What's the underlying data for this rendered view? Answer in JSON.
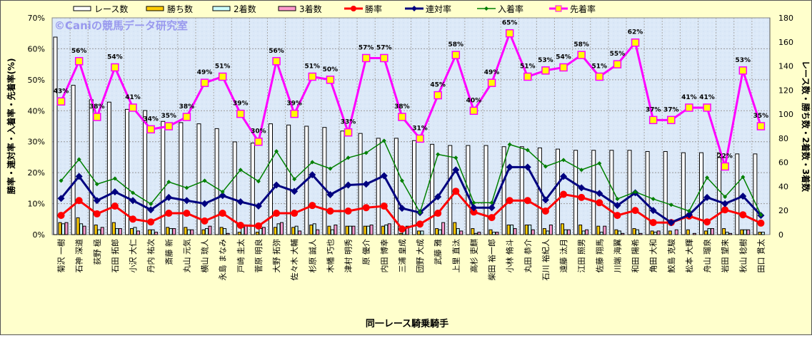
{
  "chart_data": {
    "type": "bar+line",
    "watermark": "©Caniの競馬データ研究室",
    "xlabel": "同一レース騎乗騎手",
    "ylabel_left": "勝率・連対率・入着率・先着率(%)",
    "ylabel_right": "レース数・勝ち数・2着数・3着数",
    "ylim_left": [
      0,
      70
    ],
    "ylim_right": [
      0,
      180
    ],
    "yticks_left": [
      "0%",
      "10%",
      "20%",
      "30%",
      "40%",
      "50%",
      "60%",
      "70%"
    ],
    "yticks_right": [
      "0",
      "20",
      "40",
      "60",
      "80",
      "100",
      "120",
      "140",
      "160",
      "180"
    ],
    "grid": true,
    "legend_position": "top",
    "legend": [
      "レース数",
      "勝ち数",
      "2着数",
      "3着数",
      "勝率",
      "連対率",
      "入着率",
      "先着率"
    ],
    "colors": {
      "races": "#FFFFFF",
      "wins": "#FFCC00",
      "second": "#CCFFFF",
      "third": "#FF99CC",
      "win_rate": "#FF0000",
      "top2_rate": "#000080",
      "top3_rate": "#008000",
      "ahead_rate": "#FF00FF",
      "ahead_marker": "#FFFF00"
    },
    "categories": [
      "菊沢 一樹",
      "石神 深道",
      "荻野 極",
      "石田 拓郎",
      "小沢 大仁",
      "丹内 祐次",
      "斎藤 新",
      "丸山 元気",
      "横山 琉人",
      "永島 まなみ",
      "戸崎 圭太",
      "菅原 明良",
      "大野 拓弥",
      "佐々木 大輔",
      "杉原 誠人",
      "木幡 巧也",
      "津村 明秀",
      "原 優介",
      "内田 博幸",
      "三浦 皇成",
      "団野 大成",
      "武藤 雅",
      "上里 直汰",
      "高杉 吏麒",
      "柴田 裕一郎",
      "小林 脩斗",
      "丸田 恭介",
      "石川 裕紀人",
      "遠藤 汰月",
      "江田 照男",
      "佐藤 翔馬",
      "川端 海翼",
      "和田 陽希",
      "角田 大和",
      "鮫島 克駿",
      "松本 大輝",
      "舟山 瑠泉",
      "岩田 望来",
      "秋山 稔樹",
      "田口 貫太"
    ],
    "series": [
      {
        "name": "レース数",
        "axis": "right",
        "type": "bar",
        "values": [
          164,
          124,
          112,
          110,
          104,
          103,
          94,
          93,
          92,
          88,
          77,
          76,
          92,
          91,
          90,
          89,
          86,
          84,
          80,
          80,
          78,
          75,
          74,
          74,
          74,
          73,
          73,
          72,
          71,
          70,
          70,
          70,
          70,
          69,
          69,
          68,
          68,
          68,
          67,
          67
        ]
      },
      {
        "name": "勝ち数",
        "axis": "right",
        "type": "bar",
        "values": [
          10,
          14,
          8,
          10,
          5,
          4,
          6,
          6,
          4,
          6,
          2,
          2,
          6,
          6,
          8,
          7,
          7,
          7,
          7,
          1,
          3,
          5,
          10,
          5,
          4,
          8,
          8,
          5,
          9,
          8,
          7,
          4,
          5,
          3,
          3,
          4,
          3,
          5,
          4,
          2
        ]
      },
      {
        "name": "2着数",
        "axis": "right",
        "type": "bar",
        "values": [
          9,
          9,
          4,
          5,
          6,
          4,
          5,
          4,
          5,
          5,
          6,
          5,
          9,
          7,
          9,
          4,
          7,
          7,
          8,
          6,
          3,
          4,
          5,
          1,
          2,
          8,
          8,
          3,
          4,
          3,
          2,
          3,
          4,
          2,
          0,
          0,
          5,
          2,
          4,
          2
        ]
      },
      {
        "name": "3着数",
        "axis": "right",
        "type": "bar",
        "values": [
          10,
          7,
          6,
          5,
          3,
          2,
          5,
          4,
          7,
          1,
          8,
          6,
          10,
          3,
          4,
          8,
          7,
          8,
          9,
          7,
          0,
          10,
          3,
          2,
          2,
          5,
          4,
          8,
          4,
          4,
          7,
          1,
          1,
          3,
          4,
          1,
          5,
          1,
          4,
          0
        ]
      },
      {
        "name": "勝率",
        "axis": "left",
        "type": "line",
        "values": [
          6.2,
          11,
          6.7,
          9.2,
          5,
          4.1,
          6.9,
          6.9,
          4.4,
          6.9,
          3,
          2.8,
          6.9,
          6.9,
          9.4,
          7.6,
          7.6,
          8.7,
          9.2,
          1.8,
          3.4,
          6.9,
          14,
          7.3,
          5.5,
          11,
          11,
          7.6,
          13,
          12,
          10.3,
          6.2,
          7.8,
          3.9,
          3.9,
          6,
          4.1,
          8,
          6.4,
          3.7
        ]
      },
      {
        "name": "連対率",
        "axis": "left",
        "type": "line",
        "values": [
          11.7,
          18.8,
          11,
          13.8,
          11,
          8,
          12,
          11,
          10,
          12.6,
          10.6,
          9.2,
          16,
          14,
          19.3,
          12.9,
          16,
          16.3,
          19,
          8.5,
          7.1,
          12.2,
          20.9,
          8.7,
          8.7,
          21.8,
          21.8,
          11.2,
          18.8,
          15.1,
          13.3,
          9.4,
          13.5,
          7.8,
          3.9,
          6.4,
          12,
          10,
          12.4,
          6.2
        ]
      },
      {
        "name": "入着率",
        "axis": "left",
        "type": "line",
        "values": [
          17.4,
          24.3,
          16.3,
          18.1,
          13.5,
          9.9,
          17,
          15.1,
          17.4,
          13.8,
          20.9,
          17.2,
          26.9,
          17.9,
          23.4,
          21.3,
          24.8,
          26.4,
          30.3,
          17.4,
          7.1,
          25.9,
          24.8,
          10.3,
          10.3,
          29.1,
          27.3,
          22,
          24.1,
          20.9,
          23,
          11.5,
          13.8,
          11.5,
          9.6,
          7.6,
          18.4,
          12.2,
          18.6,
          6.4
        ]
      },
      {
        "name": "先着率",
        "axis": "left",
        "type": "line",
        "values": [
          43,
          56,
          38,
          54,
          41,
          34,
          35,
          38,
          49,
          51,
          39,
          30,
          56,
          39,
          51,
          50,
          33,
          57,
          57,
          38,
          31,
          45,
          58,
          40,
          49,
          65,
          51,
          53,
          54,
          58,
          51,
          55,
          62,
          37,
          37,
          41,
          41,
          22,
          53,
          35
        ],
        "labels": [
          "43%",
          "56%",
          "38%",
          "54%",
          "41%",
          "34%",
          "35%",
          "38%",
          "49%",
          "51%",
          "39%",
          "30%",
          "56%",
          "39%",
          "51%",
          "50%",
          "33%",
          "57%",
          "57%",
          "38%",
          "31%",
          "45%",
          "58%",
          "40%",
          "49%",
          "65%",
          "51%",
          "53%",
          "54%",
          "58%",
          "51%",
          "55%",
          "62%",
          "37%",
          "37%",
          "41%",
          "41%",
          "22%",
          "53%",
          "35%"
        ]
      }
    ]
  }
}
